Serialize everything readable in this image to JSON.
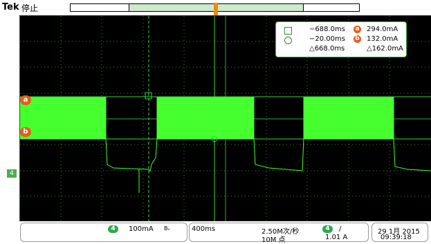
{
  "topbar": {
    "brand": "Tek",
    "status": "停止"
  },
  "markers": {
    "ch_a": "a",
    "ch_b": "b",
    "trigger_tag": "4"
  },
  "cursors": {
    "row1": {
      "time": "−688.0ms",
      "badge": "a",
      "value": "294.0mA"
    },
    "row2": {
      "time": "−20.00ms",
      "badge": "b",
      "value": "132.0mA"
    },
    "delta": {
      "time": "△668.0ms",
      "value": "△162.0mA"
    }
  },
  "bottom": {
    "channel": {
      "number": "4",
      "scale": "100mA",
      "coupling": "Bᵥ"
    },
    "timebase": {
      "scale": "400ms"
    },
    "acquisition": {
      "rate": "2.50M次/秒",
      "points": "10M 点"
    },
    "trigger": {
      "channel": "4",
      "slope": "/",
      "level": "1.01 A"
    },
    "datetime": {
      "date": "29 1月 2015",
      "time": "09:39:18"
    }
  },
  "colors": {
    "trace": "#46ff2e",
    "grid": "#2f8f2f",
    "cursor_line": "#37d63f",
    "screen_bg": "#000000",
    "marker": "#e85c1d"
  }
}
